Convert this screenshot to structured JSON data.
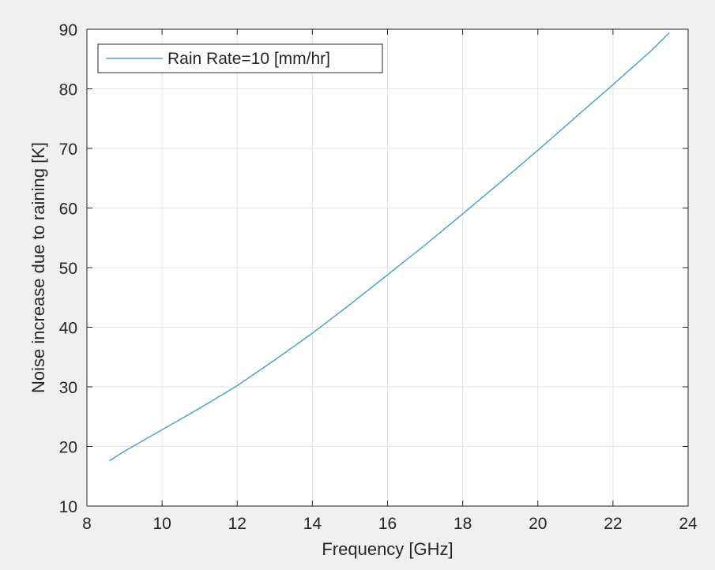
{
  "chart_data": {
    "type": "line",
    "xlabel": "Frequency [GHz]",
    "ylabel": "Noise increase due to raining [K]",
    "xlim": [
      8,
      24
    ],
    "ylim": [
      10,
      90
    ],
    "xticks": [
      8,
      10,
      12,
      14,
      16,
      18,
      20,
      22,
      24
    ],
    "yticks": [
      10,
      20,
      30,
      40,
      50,
      60,
      70,
      80,
      90
    ],
    "grid": true,
    "legend_position": "top-left",
    "colors": {
      "background": "#f0f0f0",
      "axes_background": "#ffffff",
      "grid": "#e3e3e3",
      "axis": "#262626",
      "series": "#4aa8c0"
    },
    "series": [
      {
        "name": "Rain Rate=10 [mm/hr]",
        "x": [
          8.6,
          9,
          10,
          11,
          12,
          13,
          14,
          15,
          16,
          17,
          18,
          19,
          20,
          21,
          22,
          23,
          23.5
        ],
        "y": [
          17.6,
          19.2,
          22.8,
          26.4,
          30.2,
          34.5,
          39.0,
          43.8,
          48.8,
          53.8,
          59.0,
          64.3,
          69.7,
          75.2,
          80.7,
          86.3,
          89.4
        ]
      }
    ]
  }
}
